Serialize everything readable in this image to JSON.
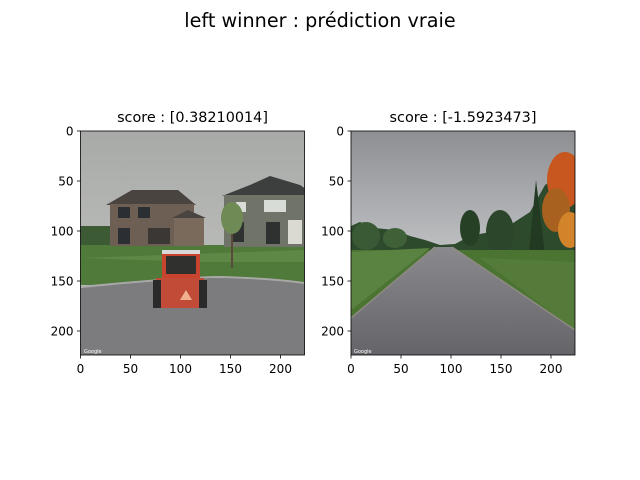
{
  "figure": {
    "suptitle": "left winner : prédiction vraie"
  },
  "chart_data": [
    {
      "type": "image",
      "title": "score : [0.38210014]",
      "xlim": [
        0,
        224
      ],
      "ylim": [
        224,
        0
      ],
      "x_ticks": [
        0,
        50,
        100,
        150,
        200
      ],
      "y_ticks": [
        0,
        50,
        100,
        150,
        200
      ],
      "x_tick_labels": [
        "0",
        "50",
        "100",
        "150",
        "200"
      ],
      "y_tick_labels": [
        "0",
        "50",
        "100",
        "150",
        "200"
      ],
      "watermark_left": "Google",
      "scene": "suburban-houses-with-red-skid-steer",
      "colors": {
        "sky": "#b8bab8",
        "grass": "#4f7a3a",
        "road": "#7c7c7e",
        "house": "#6d5f53",
        "machine": "#c9442f"
      }
    },
    {
      "type": "image",
      "title": "score : [-1.5923473]",
      "xlim": [
        0,
        224
      ],
      "ylim": [
        224,
        0
      ],
      "x_ticks": [
        0,
        50,
        100,
        150,
        200
      ],
      "y_ticks": [
        0,
        50,
        100,
        150,
        200
      ],
      "x_tick_labels": [
        "0",
        "50",
        "100",
        "150",
        "200"
      ],
      "y_tick_labels": [
        "0",
        "50",
        "100",
        "150",
        "200"
      ],
      "watermark_left": "Google",
      "scene": "rural-road-with-trees",
      "colors": {
        "sky": "#9fa1a4",
        "grass": "#4b7433",
        "road": "#6f6f73",
        "trees": "#2e4a2c",
        "autumn": "#c8571f"
      }
    }
  ]
}
